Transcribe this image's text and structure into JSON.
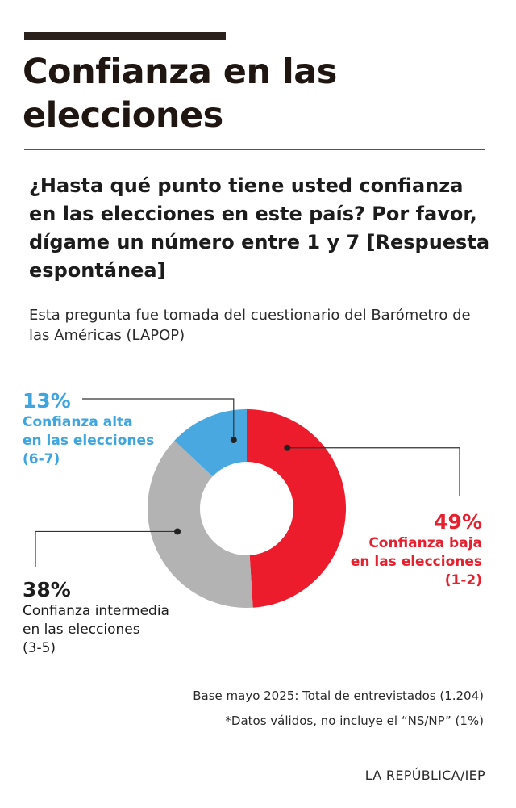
{
  "title": "Confianza en las elecciones",
  "question": "¿Hasta qué punto tiene usted confianza en las elecciones en este país? Por favor, dígame un número entre 1 y 7 [Respuesta espontánea]",
  "source_note": "Esta pregunta fue tomada del cuestionario del Barómetro de las Américas (LAPOP)",
  "chart_data": {
    "type": "pie",
    "categories": [
      "Confianza baja en las elecciones (1-2)",
      "Confianza intermedia en las elecciones (3-5)",
      "Confianza alta en las elecciones (6-7)"
    ],
    "values": [
      49,
      38,
      13
    ],
    "colors": [
      "#ec1c2d",
      "#b3b3b3",
      "#49a8df"
    ],
    "donut": true,
    "labels": {
      "low": {
        "value": "49%",
        "desc": "Confianza baja\nen las elecciones\n(1-2)"
      },
      "mid": {
        "value": "38%",
        "desc": "Confianza intermedia\nen las elecciones\n(3-5)"
      },
      "high": {
        "value": "13%",
        "desc": "Confianza alta\nen las elecciones\n(6-7)"
      }
    }
  },
  "footnotes": [
    "Base mayo 2025: Total de entrevistados (1.204)",
    "*Datos válidos, no incluye el “NS/NP” (1%)"
  ],
  "credit": "LA REPÚBLICA/IEP"
}
